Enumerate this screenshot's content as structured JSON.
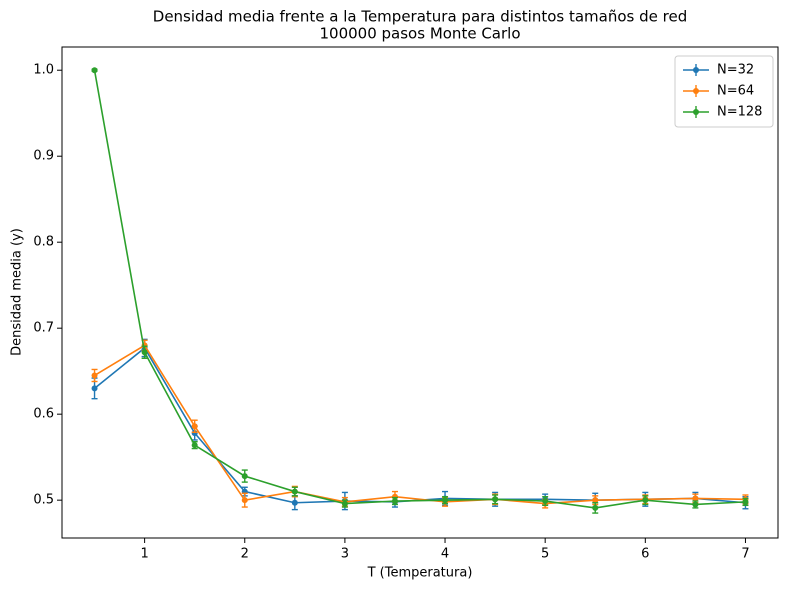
{
  "chart_data": {
    "type": "errorbar-line",
    "title": "Densidad media frente a la Temperatura para distintos tamaños de red",
    "subtitle": "100000 pasos Monte Carlo",
    "x_label": "T (Temperatura)",
    "y_label": "Densidad media (y)",
    "x": [
      0.5,
      1,
      1.5,
      2,
      2.5,
      3,
      3.5,
      4,
      4.5,
      5,
      5.5,
      6,
      6.5,
      7
    ],
    "series": [
      {
        "name": "N=32",
        "color": "#1f77b4",
        "values": [
          0.63,
          0.677,
          0.578,
          0.51,
          0.497,
          0.499,
          0.498,
          0.502,
          0.501,
          0.501,
          0.5,
          0.501,
          0.502,
          0.497
        ],
        "errors": [
          0.012,
          0.01,
          0.008,
          0.005,
          0.008,
          0.01,
          0.006,
          0.008,
          0.008,
          0.006,
          0.008,
          0.008,
          0.007,
          0.007
        ]
      },
      {
        "name": "N=64",
        "color": "#ff7f0e",
        "values": [
          0.645,
          0.68,
          0.586,
          0.5,
          0.51,
          0.498,
          0.504,
          0.498,
          0.501,
          0.496,
          0.5,
          0.501,
          0.502,
          0.501
        ],
        "errors": [
          0.007,
          0.006,
          0.007,
          0.008,
          0.006,
          0.005,
          0.006,
          0.005,
          0.006,
          0.005,
          0.005,
          0.005,
          0.005,
          0.005
        ]
      },
      {
        "name": "N=128",
        "color": "#2ca02c",
        "values": [
          1.0,
          0.672,
          0.564,
          0.528,
          0.51,
          0.496,
          0.499,
          0.5,
          0.501,
          0.499,
          0.491,
          0.5,
          0.495,
          0.498
        ],
        "errors": [
          0.001,
          0.007,
          0.004,
          0.007,
          0.005,
          0.004,
          0.004,
          0.004,
          0.005,
          0.005,
          0.006,
          0.005,
          0.004,
          0.004
        ]
      }
    ],
    "xlim": [
      0.175,
      7.325
    ],
    "xticks": [
      1,
      2,
      3,
      4,
      5,
      6,
      7
    ],
    "ylim": [
      0.456,
      1.027
    ],
    "yticks": [
      0.5,
      0.6,
      0.7,
      0.8,
      0.9,
      {
        "value": 1.0,
        "label": "1.0"
      }
    ],
    "legend": "upper right"
  }
}
